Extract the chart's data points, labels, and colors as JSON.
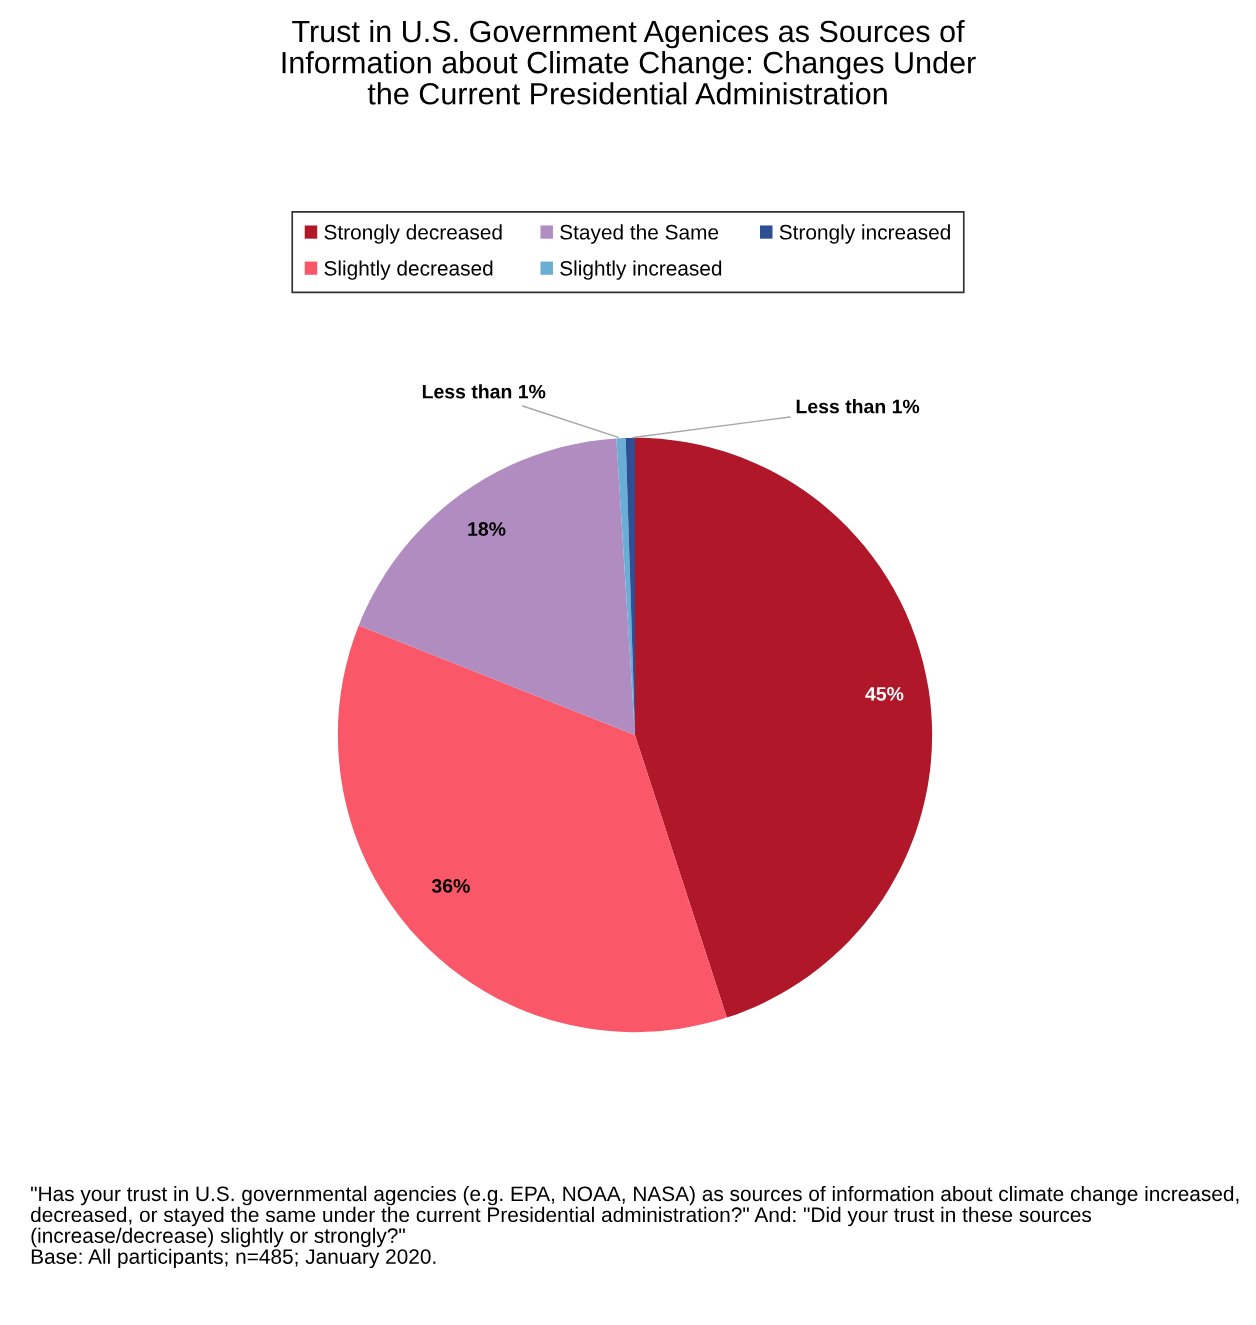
{
  "chart_data": {
    "type": "pie",
    "title": "Trust in U.S. Government Agenices as Sources of\nInformation about Climate Change: Changes Under\nthe Current Presidential Administration",
    "categories": [
      "Strongly decreased",
      "Slightly decreased",
      "Stayed the Same",
      "Slightly increased",
      "Strongly increased"
    ],
    "values": [
      45,
      36,
      18,
      0.5,
      0.5
    ],
    "colors": [
      "#b01729",
      "#fa5769",
      "#b08cc1",
      "#6aaed6",
      "#2e4f94"
    ],
    "value_labels": [
      "45%",
      "36%",
      "18%",
      "Less than 1%",
      "Less than 1%"
    ],
    "legend": "top",
    "annotations": [
      "\"Has your trust in U.S. governmental agencies (e.g. EPA, NOAA, NASA) as sources of information about climate change increased, decreased, or stayed the same under the current Presidential administration?\" And: \"Did your trust in these sources (increase/decrease) slightly or strongly?\"\nBase: All participants; n=485; January 2020."
    ]
  }
}
